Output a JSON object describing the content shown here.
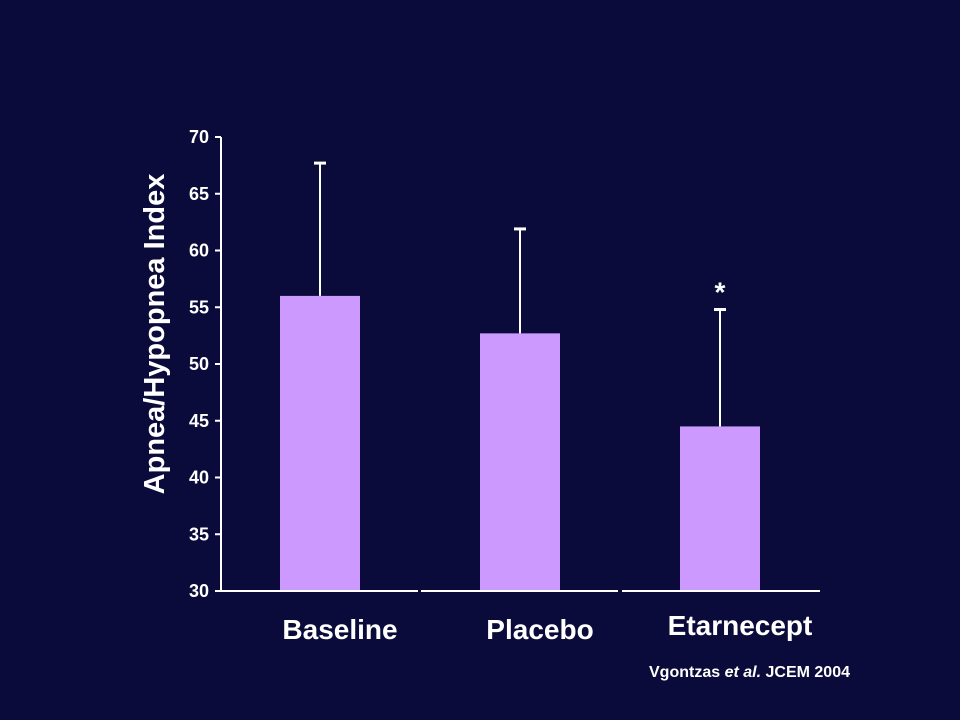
{
  "chart_data": {
    "type": "bar",
    "categories": [
      "Baseline",
      "Placebo",
      "Etarnecept"
    ],
    "values": [
      56.0,
      52.7,
      44.5
    ],
    "error_upper": [
      67.7,
      61.9,
      54.8
    ],
    "significance_markers": [
      "",
      "",
      "*"
    ],
    "ylabel": "Apnea/Hypopnea Index",
    "xlabel": "",
    "ylim": [
      30,
      70
    ],
    "yticks": [
      30,
      35,
      40,
      45,
      50,
      55,
      60,
      65,
      70
    ],
    "grid": false,
    "legend": "none",
    "colors": {
      "bar": "#cc99ff",
      "background": "#0b0b3b",
      "axis": "#ffffff",
      "text": "#ffffff"
    }
  },
  "citation": {
    "authors": "Vgontzas",
    "etal": "et al.",
    "source": "JCEM 2004"
  }
}
